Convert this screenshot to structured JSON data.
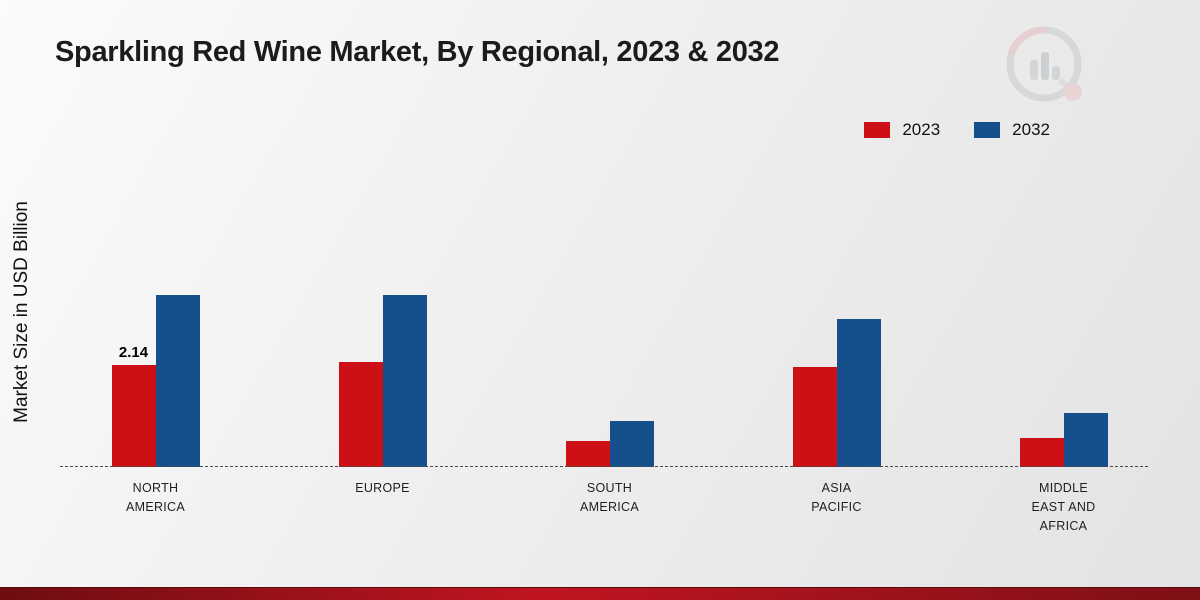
{
  "title": "Sparkling Red Wine Market, By Regional, 2023 & 2032",
  "ylabel": "Market Size in USD Billion",
  "colors": {
    "series2023": "#cc1016",
    "series2032": "#15508d",
    "accent_strip": "#c01520"
  },
  "logo": "mrfr-watermark-logo",
  "chart_data": {
    "type": "bar",
    "categories": [
      "NORTH AMERICA",
      "EUROPE",
      "SOUTH AMERICA",
      "ASIA PACIFIC",
      "MIDDLE EAST AND AFRICA"
    ],
    "series": [
      {
        "name": "2023",
        "color": "#cc1016",
        "values": [
          2.14,
          2.2,
          0.55,
          2.1,
          0.6
        ]
      },
      {
        "name": "2032",
        "color": "#15508d",
        "values": [
          3.6,
          3.6,
          0.96,
          3.1,
          1.13
        ]
      }
    ],
    "annotations": [
      {
        "category_index": 0,
        "series_index": 0,
        "text": "2.14"
      }
    ],
    "ylabel": "Market Size in USD Billion",
    "xlabel": "",
    "ylim": [
      0,
      4.2
    ],
    "grid": false,
    "legend_position": "top-right",
    "baseline_style": "dashed"
  }
}
